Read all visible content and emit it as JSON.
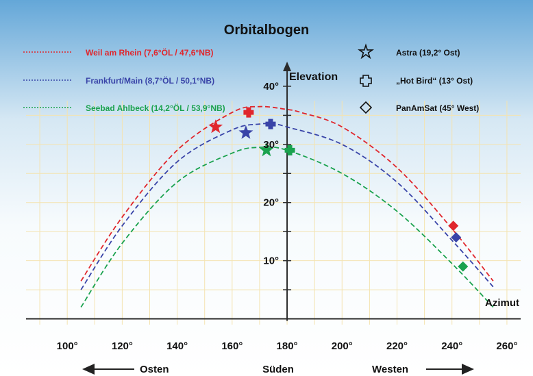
{
  "chart_data": {
    "type": "line",
    "title": "Orbitalbogen",
    "xlabel": "Azimut",
    "ylabel": "Elevation",
    "xlim": [
      85,
      265
    ],
    "ylim": [
      -1,
      44
    ],
    "x_ticks": [
      100,
      120,
      140,
      160,
      180,
      200,
      220,
      240,
      260
    ],
    "x_tick_labels": [
      "100°",
      "120°",
      "140°",
      "160°",
      "180°",
      "200°",
      "220°",
      "240°",
      "260°"
    ],
    "y_ticks": [
      10,
      20,
      30,
      40
    ],
    "y_tick_labels": [
      "10°",
      "20°",
      "30°",
      "40°"
    ],
    "grid": true,
    "direction_labels": {
      "east": "Osten",
      "south": "Süden",
      "west": "Westen"
    },
    "series": [
      {
        "name": "Weil am Rhein (7,6°ÖL / 47,6°NB)",
        "color": "#e0262c",
        "x": [
          105,
          120,
          140,
          160,
          170,
          180,
          185,
          200,
          220,
          240,
          255
        ],
        "y": [
          6.5,
          17.5,
          29,
          35.5,
          36.5,
          36,
          35.5,
          33,
          26,
          15.5,
          6.5
        ]
      },
      {
        "name": "Frankfurt/Main (8,7°ÖL / 50,1°NB)",
        "color": "#3944a8",
        "x": [
          105,
          120,
          140,
          160,
          170,
          175,
          180,
          200,
          220,
          240,
          255
        ],
        "y": [
          5,
          16,
          27,
          32.5,
          33.5,
          33.5,
          33,
          30,
          23.5,
          13.5,
          5.5
        ]
      },
      {
        "name": "Seebad Ahlbeck (14,2°ÖL / 53,9°NB)",
        "color": "#1aa24e",
        "x": [
          105,
          120,
          140,
          160,
          170,
          180,
          200,
          220,
          240,
          255
        ],
        "y": [
          2,
          13,
          23.5,
          28.5,
          29.5,
          29,
          25,
          18.5,
          9.5,
          2
        ]
      }
    ],
    "satellites": [
      {
        "name": "Astra (19,2° Ost)",
        "symbol": "star-icon"
      },
      {
        "name": "„Hot Bird“ (13° Ost)",
        "symbol": "cross-icon"
      },
      {
        "name": "PanAmSat (45° West)",
        "symbol": "diamond-icon"
      }
    ],
    "satellite_positions": [
      {
        "satellite": "Astra (19,2° Ost)",
        "series": 0,
        "x": 154,
        "y": 33
      },
      {
        "satellite": "„Hot Bird“ (13° Ost)",
        "series": 0,
        "x": 166,
        "y": 35.5
      },
      {
        "satellite": "PanAmSat (45° West)",
        "series": 0,
        "x": 240.5,
        "y": 16
      },
      {
        "satellite": "Astra (19,2° Ost)",
        "series": 1,
        "x": 165,
        "y": 32
      },
      {
        "satellite": "„Hot Bird“ (13° Ost)",
        "series": 1,
        "x": 174,
        "y": 33.5
      },
      {
        "satellite": "PanAmSat (45° West)",
        "series": 1,
        "x": 241.5,
        "y": 14
      },
      {
        "satellite": "Astra (19,2° Ost)",
        "series": 2,
        "x": 172.5,
        "y": 29
      },
      {
        "satellite": "„Hot Bird“ (13° Ost)",
        "series": 2,
        "x": 181,
        "y": 29
      },
      {
        "satellite": "PanAmSat (45° West)",
        "series": 2,
        "x": 244,
        "y": 9
      }
    ]
  }
}
